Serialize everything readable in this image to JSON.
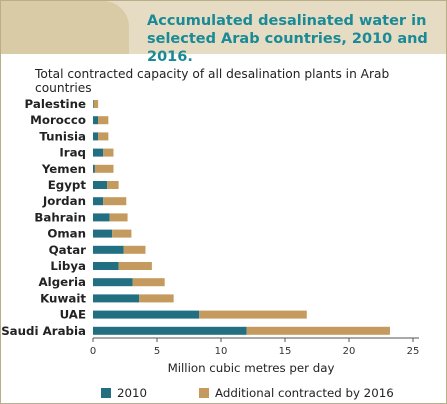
{
  "title": "Accumulated desalinated water in selected Arab countries, 2010 and 2016.",
  "chart_data": {
    "type": "bar",
    "orientation": "horizontal",
    "stacked": true,
    "subtitle": "Total contracted capacity of all desalination plants in Arab countries",
    "categories": [
      "Palestine",
      "Morocco",
      "Tunisia",
      "Iraq",
      "Yemen",
      "Egypt",
      "Jordan",
      "Bahrain",
      "Oman",
      "Qatar",
      "Libya",
      "Algeria",
      "Kuwait",
      "UAE",
      "Saudi Arabia"
    ],
    "series": [
      {
        "name": "2010",
        "color": "#236f82",
        "values": [
          0.05,
          0.4,
          0.4,
          0.8,
          0.15,
          1.1,
          0.8,
          1.3,
          1.5,
          2.4,
          2.0,
          3.1,
          3.6,
          8.3,
          12.0
        ]
      },
      {
        "name": "Additional contracted by 2016",
        "color": "#c49a5e",
        "values": [
          0.35,
          0.8,
          0.8,
          0.8,
          1.45,
          0.9,
          1.8,
          1.4,
          1.5,
          1.7,
          2.6,
          2.5,
          2.7,
          8.4,
          11.2
        ]
      }
    ],
    "xlabel": "Million cubic metres per day",
    "xlim": [
      0,
      25
    ],
    "xticks": [
      "0",
      "5",
      "10",
      "15",
      "20",
      "25"
    ],
    "grid": false,
    "legend_position": "bottom"
  }
}
